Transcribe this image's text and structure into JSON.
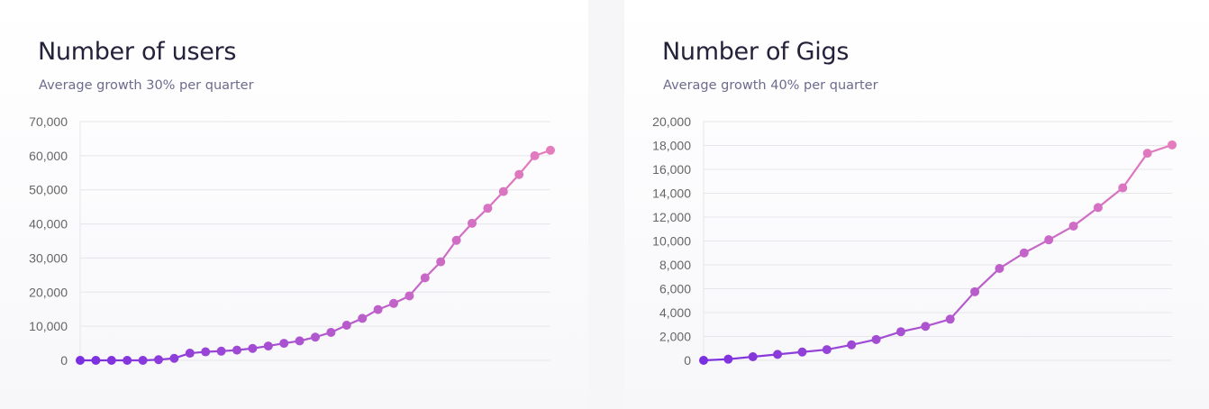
{
  "colors": {
    "line_start": "#7a2fe0",
    "line_end": "#e57dbd",
    "grid": "#e6e6ea",
    "tick_label": "#666666",
    "title": "#24223a",
    "subtitle": "#6d6b8e"
  },
  "chart_data": [
    {
      "type": "line",
      "title": "Number of users",
      "subtitle": "Average growth 30% per quarter",
      "ylim": [
        0,
        70000
      ],
      "yticks": [
        0,
        10000,
        20000,
        30000,
        40000,
        50000,
        60000,
        70000
      ],
      "ytick_labels": [
        "0",
        "10,000",
        "20,000",
        "30,000",
        "40,000",
        "50,000",
        "60,000",
        "70,000"
      ],
      "grid": true,
      "legend": "none",
      "values": [
        0,
        0,
        0,
        0,
        0,
        200,
        600,
        2100,
        2500,
        2700,
        3000,
        3500,
        4200,
        5000,
        5700,
        6800,
        8200,
        10300,
        12300,
        14900,
        16700,
        18900,
        24200,
        28900,
        35200,
        40200,
        44600,
        49500,
        54500,
        60000,
        61600
      ]
    },
    {
      "type": "line",
      "title": "Number of Gigs",
      "subtitle": "Average growth 40% per quarter",
      "ylim": [
        0,
        20000
      ],
      "yticks": [
        0,
        2000,
        4000,
        6000,
        8000,
        10000,
        12000,
        14000,
        16000,
        18000,
        20000
      ],
      "ytick_labels": [
        "0",
        "2,000",
        "4,000",
        "6,000",
        "8,000",
        "10,000",
        "12,000",
        "14,000",
        "16,000",
        "18,000",
        "20,000"
      ],
      "grid": true,
      "legend": "none",
      "values": [
        0,
        100,
        300,
        500,
        700,
        900,
        1300,
        1750,
        2400,
        2850,
        3450,
        5750,
        7700,
        9000,
        10100,
        11250,
        12800,
        14450,
        17350,
        18050
      ]
    }
  ]
}
